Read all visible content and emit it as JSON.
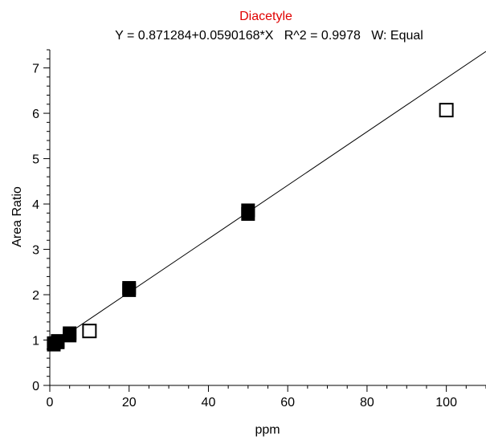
{
  "chart_data": {
    "type": "scatter",
    "title": "Diacetyle",
    "subtitle": "Y = 0.871284+0.0590168*X   R^2 = 0.9978   W: Equal",
    "xlabel": "ppm",
    "ylabel": "Area Ratio",
    "xlim": [
      0,
      110
    ],
    "ylim": [
      0,
      7.4
    ],
    "x_ticks": [
      0,
      20,
      40,
      60,
      80,
      100
    ],
    "y_ticks": [
      0,
      1,
      2,
      3,
      4,
      5,
      6,
      7
    ],
    "grid": false,
    "fit_line": {
      "intercept": 0.871284,
      "slope": 0.0590168
    },
    "series": [
      {
        "marker": "filled-square",
        "x": [
          1,
          1,
          2,
          2,
          5,
          5,
          20,
          20,
          50,
          50
        ],
        "y": [
          0.9,
          0.93,
          0.95,
          0.98,
          1.1,
          1.15,
          2.1,
          2.15,
          3.78,
          3.86
        ]
      },
      {
        "marker": "open-square",
        "x": [
          10,
          100
        ],
        "y": [
          1.2,
          6.07
        ]
      }
    ],
    "colors": {
      "title": "#e00000",
      "text": "#000000",
      "axis": "#000000",
      "marker": "#000000"
    }
  }
}
